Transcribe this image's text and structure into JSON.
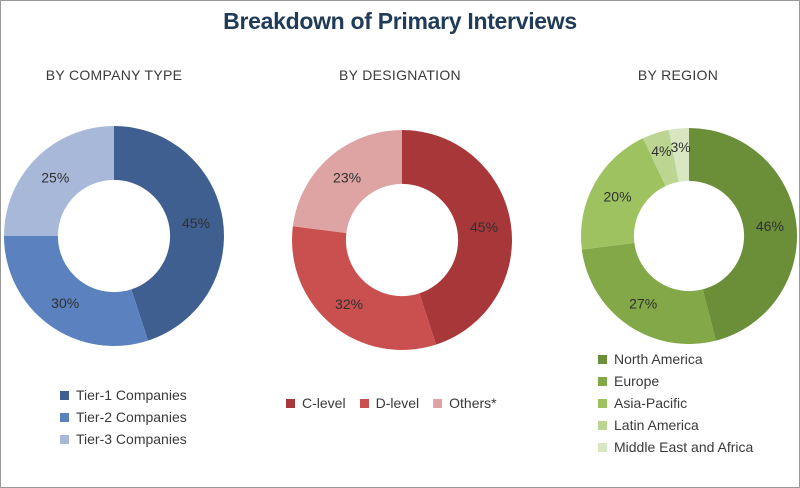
{
  "title": "Breakdown of Primary Interviews",
  "chart_data": [
    {
      "type": "pie",
      "donut": true,
      "title": "BY COMPANY TYPE",
      "categories": [
        "Tier-1 Companies",
        "Tier-2 Companies",
        "Tier-3 Companies"
      ],
      "values": [
        45,
        30,
        25
      ],
      "labels": [
        "45%",
        "30%",
        "25%"
      ],
      "colors": [
        "#3f5f90",
        "#5b82be",
        "#a8b8d8"
      ],
      "legend_position": "bottom"
    },
    {
      "type": "pie",
      "donut": true,
      "title": "BY DESIGNATION",
      "categories": [
        "C-level",
        "D-level",
        "Others*"
      ],
      "values": [
        45,
        32,
        23
      ],
      "labels": [
        "45%",
        "32%",
        "23%"
      ],
      "colors": [
        "#a8373a",
        "#c9504f",
        "#dea3a3"
      ],
      "legend_position": "bottom"
    },
    {
      "type": "pie",
      "donut": true,
      "title": "BY REGION",
      "categories": [
        "North America",
        "Europe",
        "Asia-Pacific",
        "Latin America",
        "Middle East and Africa"
      ],
      "values": [
        46,
        27,
        20,
        4,
        3
      ],
      "labels": [
        "46%",
        "27%",
        "20%",
        "4%",
        "3%"
      ],
      "colors": [
        "#6b8e38",
        "#83a847",
        "#9ec25f",
        "#bcd590",
        "#d8e6c2"
      ],
      "legend_position": "bottom"
    }
  ]
}
